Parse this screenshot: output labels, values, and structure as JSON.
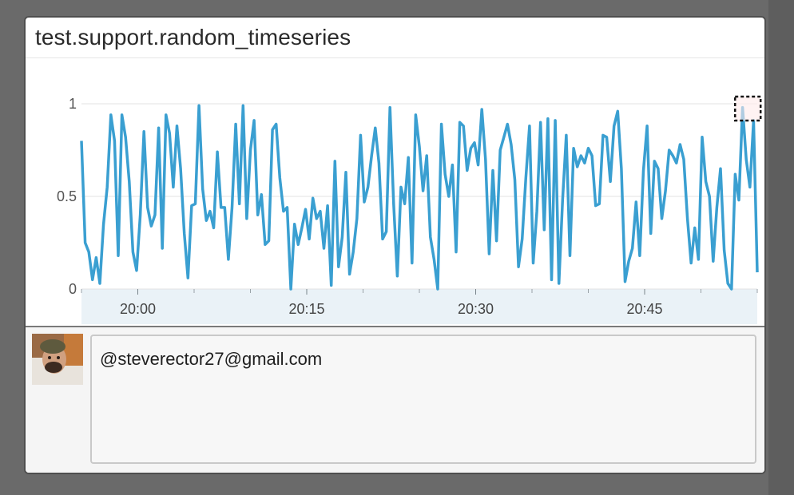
{
  "widget": {
    "title": "test.support.random_timeseries"
  },
  "comment": {
    "text": "@steverector27@gmail.com",
    "avatar_icon": "user-avatar-photo"
  },
  "colors": {
    "series": "#3a9fd1",
    "axis_band": "#eaf2f7",
    "background": "#ffffff"
  },
  "chart_data": {
    "type": "line",
    "title": "",
    "xlabel": "",
    "ylabel": "",
    "ylim": [
      0,
      1
    ],
    "yticks": [
      "0",
      "0.5",
      "1"
    ],
    "xticks": [
      "20:00",
      "20:15",
      "20:30",
      "20:45"
    ],
    "x_range": [
      "19:55",
      "20:55"
    ],
    "grid": true,
    "series": [
      {
        "values": [
          0.8,
          0.25,
          0.2,
          0.05,
          0.17,
          0.03,
          0.35,
          0.55,
          0.94,
          0.8,
          0.18,
          0.94,
          0.82,
          0.58,
          0.2,
          0.1,
          0.4,
          0.85,
          0.44,
          0.34,
          0.4,
          0.87,
          0.22,
          0.94,
          0.84,
          0.55,
          0.88,
          0.65,
          0.3,
          0.06,
          0.45,
          0.46,
          0.99,
          0.54,
          0.37,
          0.42,
          0.33,
          0.74,
          0.44,
          0.44,
          0.16,
          0.44,
          0.89,
          0.46,
          0.99,
          0.38,
          0.75,
          0.91,
          0.4,
          0.51,
          0.24,
          0.26,
          0.86,
          0.89,
          0.6,
          0.42,
          0.44,
          0.0,
          0.35,
          0.24,
          0.33,
          0.43,
          0.27,
          0.49,
          0.38,
          0.42,
          0.22,
          0.45,
          0.02,
          0.69,
          0.12,
          0.28,
          0.63,
          0.08,
          0.2,
          0.38,
          0.83,
          0.47,
          0.55,
          0.72,
          0.87,
          0.68,
          0.27,
          0.31,
          0.98,
          0.46,
          0.07,
          0.55,
          0.46,
          0.71,
          0.14,
          0.94,
          0.77,
          0.53,
          0.72,
          0.28,
          0.16,
          0.0,
          0.89,
          0.62,
          0.5,
          0.67,
          0.2,
          0.9,
          0.88,
          0.64,
          0.76,
          0.79,
          0.67,
          0.97,
          0.7,
          0.19,
          0.64,
          0.26,
          0.75,
          0.82,
          0.89,
          0.78,
          0.59,
          0.12,
          0.27,
          0.6,
          0.88,
          0.14,
          0.42,
          0.9,
          0.32,
          0.92,
          0.05,
          0.91,
          0.03,
          0.48,
          0.83,
          0.18,
          0.76,
          0.66,
          0.72,
          0.68,
          0.76,
          0.72,
          0.45,
          0.46,
          0.83,
          0.82,
          0.58,
          0.88,
          0.96,
          0.65,
          0.04,
          0.15,
          0.22,
          0.47,
          0.18,
          0.64,
          0.88,
          0.3,
          0.69,
          0.65,
          0.38,
          0.53,
          0.75,
          0.72,
          0.68,
          0.78,
          0.7,
          0.38,
          0.14,
          0.33,
          0.16,
          0.82,
          0.58,
          0.5,
          0.15,
          0.44,
          0.65,
          0.21,
          0.03,
          0.0,
          0.62,
          0.48,
          0.98,
          0.7,
          0.55,
          0.91,
          0.09
        ]
      }
    ]
  }
}
